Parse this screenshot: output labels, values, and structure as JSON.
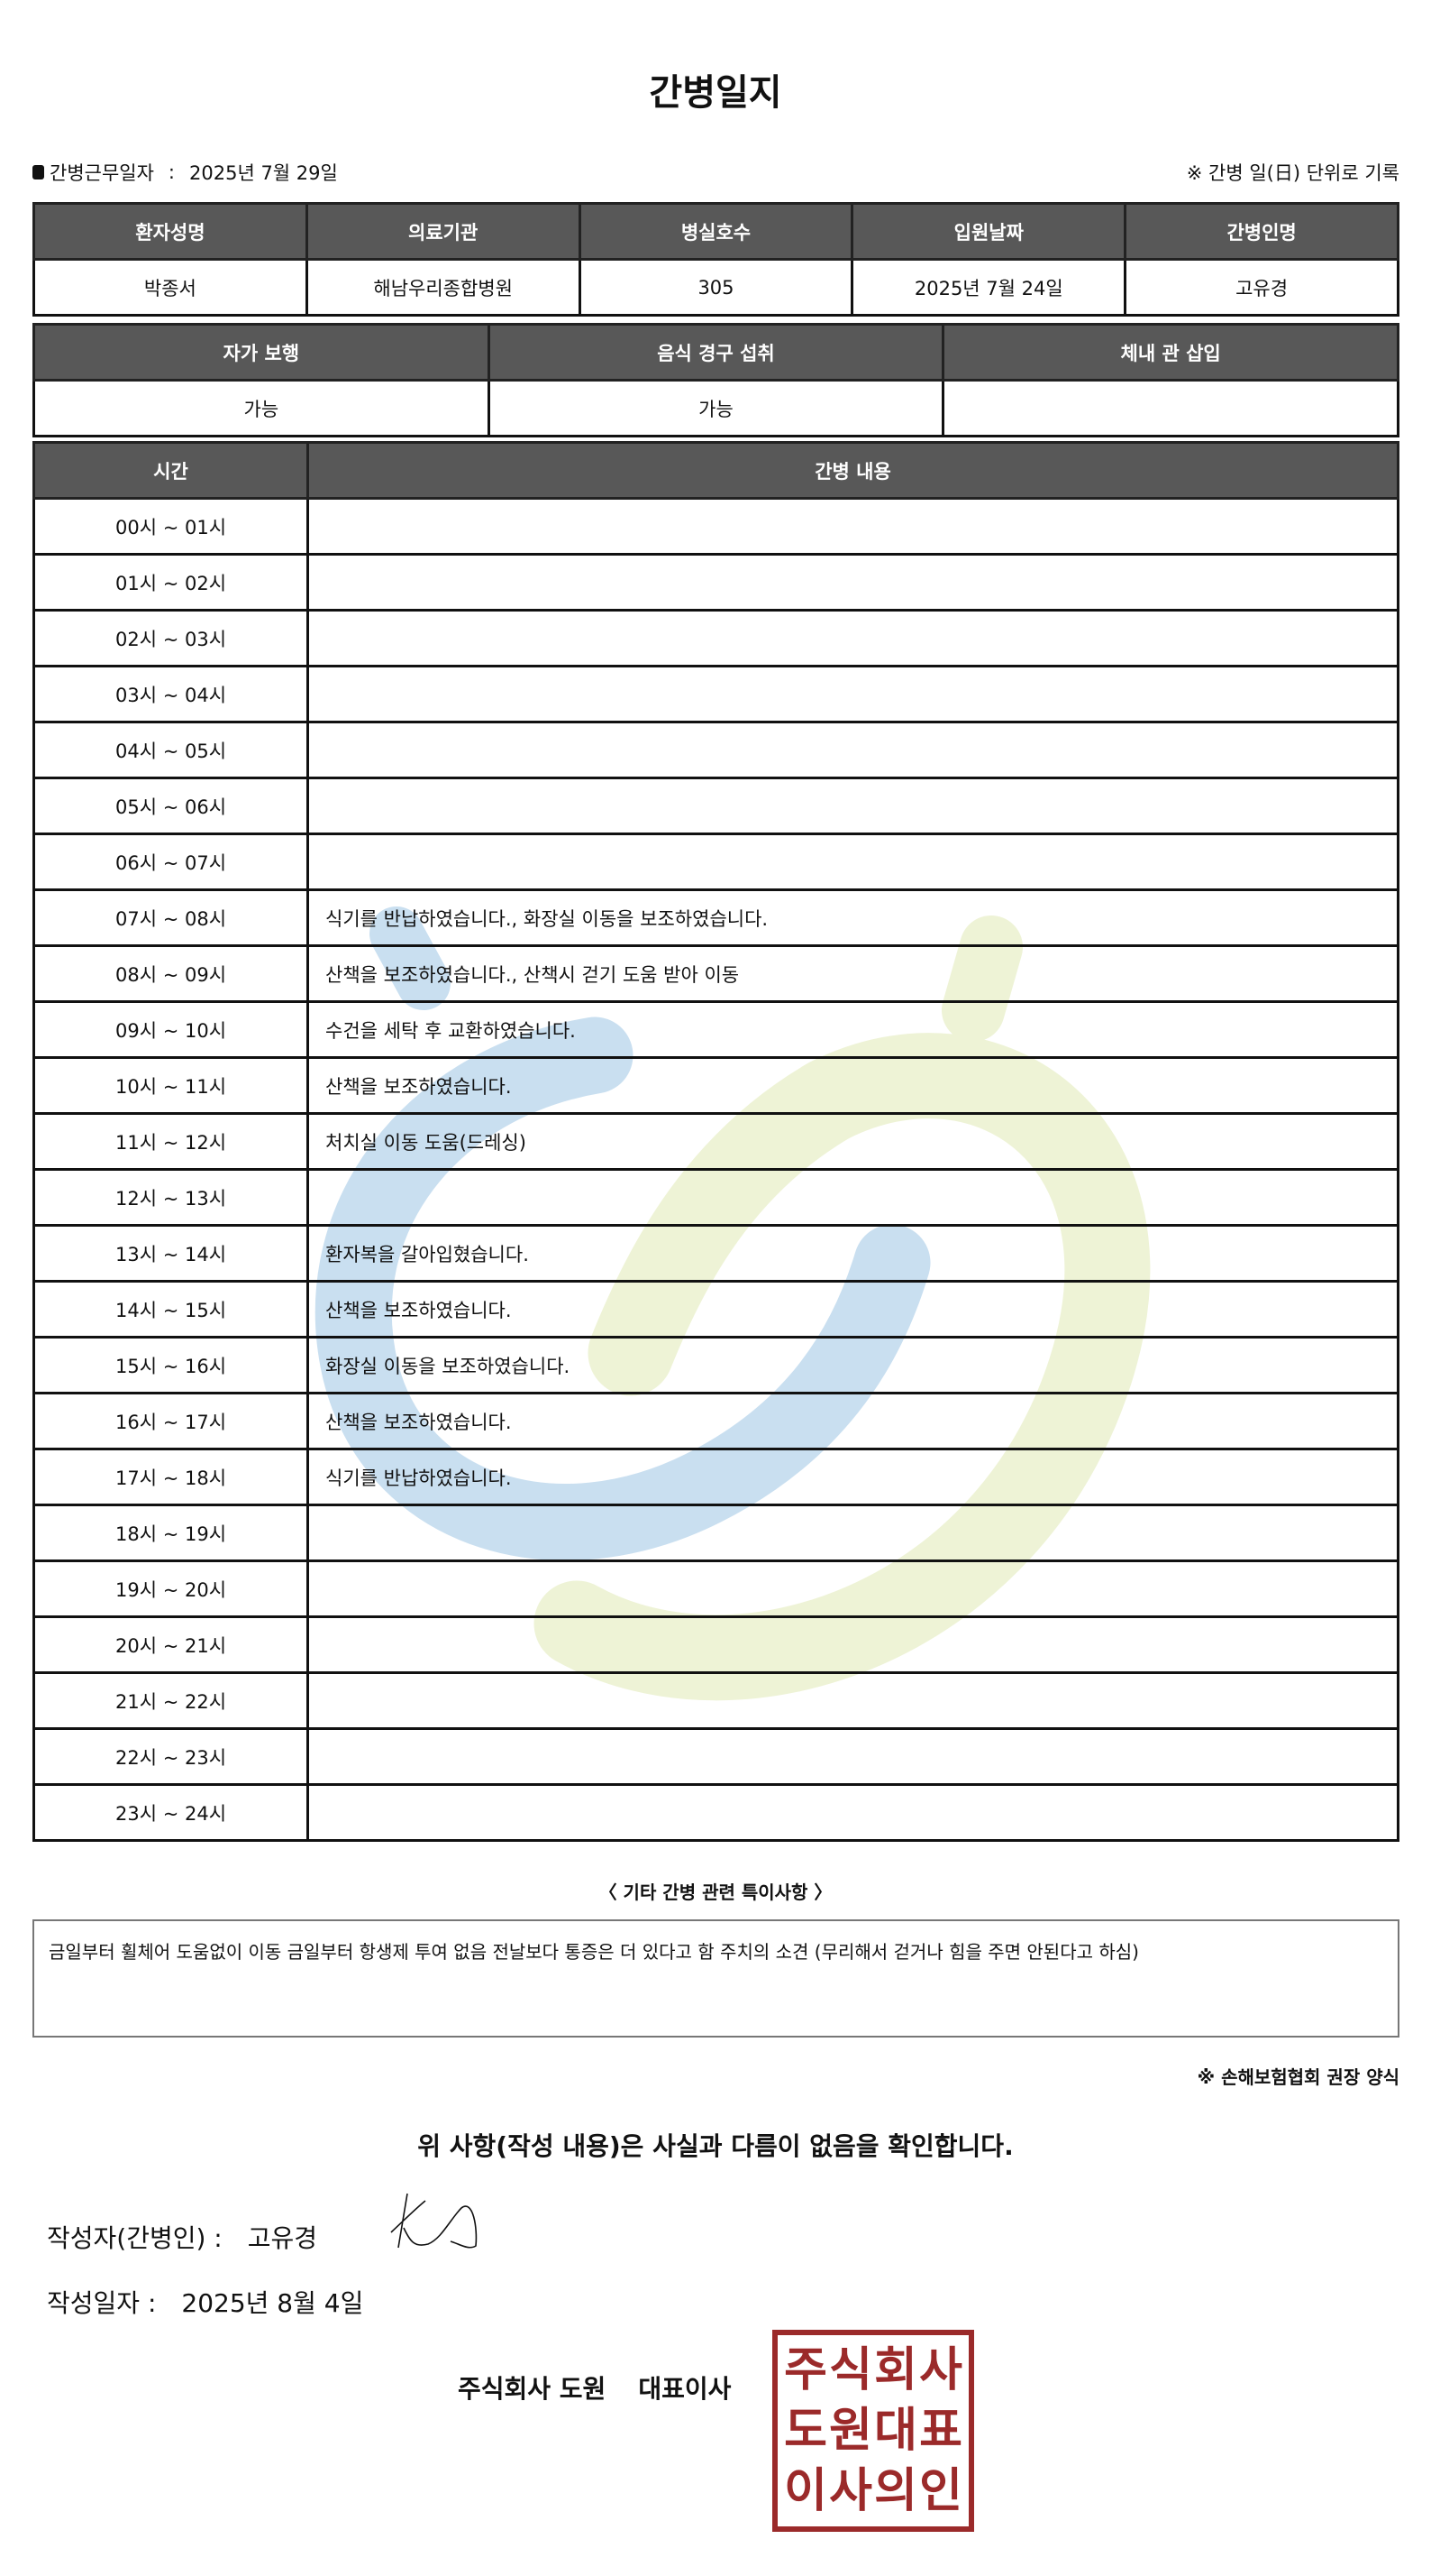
{
  "title": "간병일지",
  "work_date": {
    "label": "간병근무일자",
    "separator": ":",
    "value": "2025년 7월 29일"
  },
  "note_top": "※ 간병 일(日) 단위로 기록",
  "patient_table": {
    "headers": [
      "환자성명",
      "의료기관",
      "병실호수",
      "입원날짜",
      "간병인명"
    ],
    "values": [
      "박종서",
      "해남우리종합병원",
      "305",
      "2025년 7월 24일",
      "고유경"
    ]
  },
  "status_table": {
    "headers": [
      "자가 보행",
      "음식 경구 섭취",
      "체내 관 삽입"
    ],
    "values": [
      "가능",
      "가능",
      ""
    ]
  },
  "log_table": {
    "headers": [
      "시간",
      "간병 내용"
    ],
    "rows": [
      {
        "time": "00시 ~ 01시",
        "content": ""
      },
      {
        "time": "01시 ~ 02시",
        "content": ""
      },
      {
        "time": "02시 ~ 03시",
        "content": ""
      },
      {
        "time": "03시 ~ 04시",
        "content": ""
      },
      {
        "time": "04시 ~ 05시",
        "content": ""
      },
      {
        "time": "05시 ~ 06시",
        "content": ""
      },
      {
        "time": "06시 ~ 07시",
        "content": ""
      },
      {
        "time": "07시 ~ 08시",
        "content": "식기를 반납하였습니다., 화장실 이동을 보조하였습니다."
      },
      {
        "time": "08시 ~ 09시",
        "content": "산책을 보조하였습니다., 산책시 걷기 도움 받아 이동"
      },
      {
        "time": "09시 ~ 10시",
        "content": "수건을 세탁 후 교환하였습니다."
      },
      {
        "time": "10시 ~ 11시",
        "content": "산책을 보조하였습니다."
      },
      {
        "time": "11시 ~ 12시",
        "content": "처치실 이동 도움(드레싱)"
      },
      {
        "time": "12시 ~ 13시",
        "content": ""
      },
      {
        "time": "13시 ~ 14시",
        "content": "환자복을 갈아입혔습니다."
      },
      {
        "time": "14시 ~ 15시",
        "content": "산책을 보조하였습니다."
      },
      {
        "time": "15시 ~ 16시",
        "content": "화장실 이동을 보조하였습니다."
      },
      {
        "time": "16시 ~ 17시",
        "content": "산책을 보조하였습니다."
      },
      {
        "time": "17시 ~ 18시",
        "content": "식기를 반납하였습니다."
      },
      {
        "time": "18시 ~ 19시",
        "content": ""
      },
      {
        "time": "19시 ~ 20시",
        "content": ""
      },
      {
        "time": "20시 ~ 21시",
        "content": ""
      },
      {
        "time": "21시 ~ 22시",
        "content": ""
      },
      {
        "time": "22시 ~ 23시",
        "content": ""
      },
      {
        "time": "23시 ~ 24시",
        "content": ""
      }
    ]
  },
  "remarks": {
    "label": "〈 기타 간병 관련 특이사항 〉",
    "text": "금일부터 휠체어 도움없이 이동  금일부터 항생제 투여 없음 전날보다 통증은 더 있다고 함  주치의 소견 (무리해서 걷거나 힘을 주면 안된다고 하심)"
  },
  "form_note": "※ 손해보험협회 권장 양식",
  "confirm_text": "위 사항(작성 내용)은 사실과 다름이 없음을 확인합니다.",
  "writer": {
    "label": "작성자(간병인) :",
    "name": "고유경"
  },
  "written_date": {
    "label": "작성일자 :",
    "value": "2025년 8월 4일"
  },
  "company": {
    "name": "주식회사 도원",
    "title": "대표이사"
  },
  "seal_text": "주식회사도원대표이사의인",
  "colors": {
    "header_bg": "#585858",
    "seal": "#9b2a2a",
    "watermark_blue": "#c9dff0",
    "watermark_green": "#eef3d6"
  }
}
